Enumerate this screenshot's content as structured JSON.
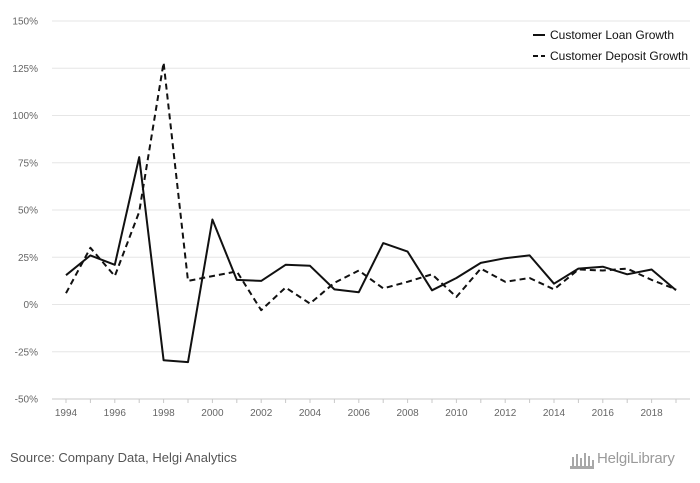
{
  "chart_data": {
    "type": "line",
    "title": "",
    "xlabel": "",
    "ylabel": "",
    "ylim": [
      -50,
      150
    ],
    "yticks": [
      150,
      125,
      100,
      75,
      50,
      25,
      0,
      -25,
      -50
    ],
    "ytick_labels": [
      "150%",
      "125%",
      "100%",
      "75%",
      "50%",
      "25%",
      "0%",
      "-25%",
      "-50%"
    ],
    "xlim": [
      1994,
      2019
    ],
    "xtick_labels": [
      "1994",
      "1996",
      "1998",
      "2000",
      "2002",
      "2004",
      "2006",
      "2008",
      "2010",
      "2012",
      "2014",
      "2016",
      "2018"
    ],
    "grid": "horizontal",
    "legend": "top-right",
    "x": [
      1994,
      1995,
      1996,
      1997,
      1998,
      1999,
      2000,
      2001,
      2002,
      2003,
      2004,
      2005,
      2006,
      2007,
      2008,
      2009,
      2010,
      2011,
      2012,
      2013,
      2014,
      2015,
      2016,
      2017,
      2018,
      2019
    ],
    "series": [
      {
        "name": "Customer Loan Growth",
        "style": "solid",
        "values": [
          15.5,
          26,
          21,
          78,
          -29.5,
          -30.5,
          45,
          13,
          12.5,
          21,
          20.5,
          8,
          6.5,
          32.5,
          28,
          7.5,
          14,
          22,
          24.5,
          26,
          11,
          19,
          20,
          16,
          18.5,
          7.5
        ]
      },
      {
        "name": "Customer Deposit Growth",
        "style": "dashed",
        "values": [
          6,
          30,
          15,
          49,
          128,
          12.5,
          15,
          17.5,
          -3,
          9,
          0.5,
          11.5,
          18,
          8.5,
          12,
          16,
          4,
          19,
          12,
          14,
          8,
          18.5,
          18,
          19,
          13,
          8
        ]
      }
    ],
    "source": "Source: Company Data, Helgi Analytics"
  },
  "branding": {
    "logo_text": "HelgiLibrary"
  }
}
